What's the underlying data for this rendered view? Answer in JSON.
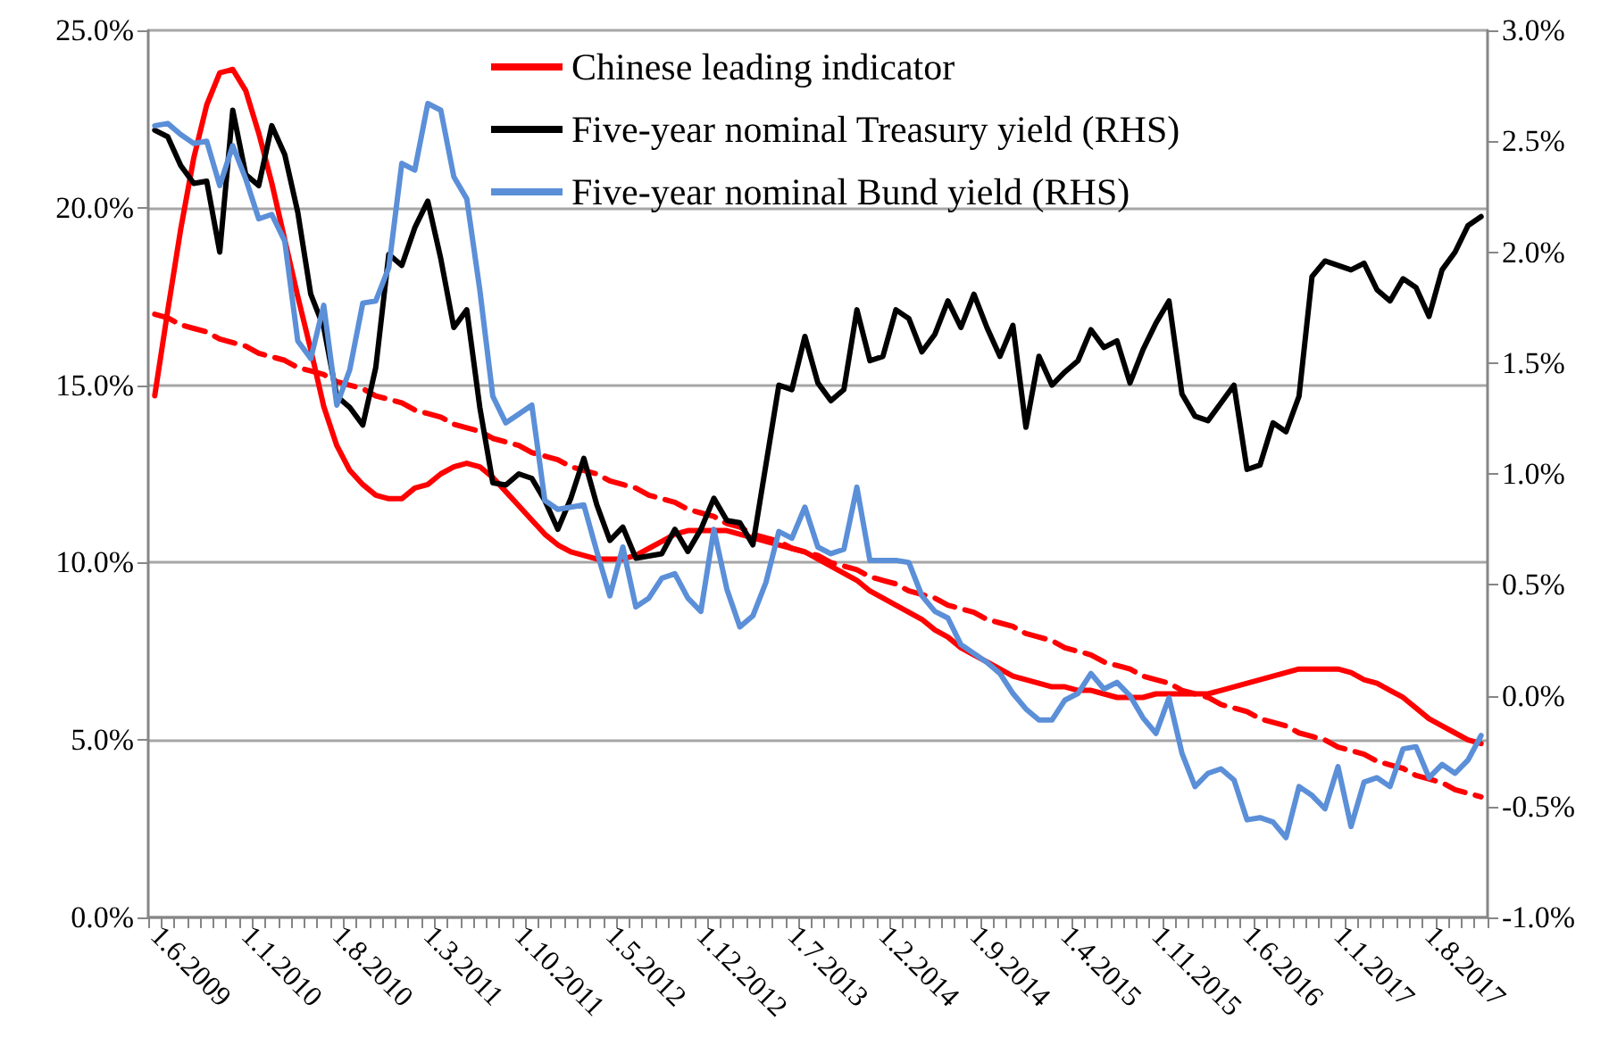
{
  "chart_data": {
    "type": "line",
    "categories": [
      "1.6.2009",
      null,
      null,
      null,
      null,
      null,
      null,
      "1.1.2010",
      null,
      null,
      null,
      null,
      null,
      null,
      "1.8.2010",
      null,
      null,
      null,
      null,
      null,
      null,
      "1.3.2011",
      null,
      null,
      null,
      null,
      null,
      null,
      "1.10.2011",
      null,
      null,
      null,
      null,
      null,
      null,
      "1.5.2012",
      null,
      null,
      null,
      null,
      null,
      null,
      "1.12.2012",
      null,
      null,
      null,
      null,
      null,
      null,
      "1.7.2013",
      null,
      null,
      null,
      null,
      null,
      null,
      "1.2.2014",
      null,
      null,
      null,
      null,
      null,
      null,
      "1.9.2014",
      null,
      null,
      null,
      null,
      null,
      null,
      "1.4.2015",
      null,
      null,
      null,
      null,
      null,
      null,
      "1.11.2015",
      null,
      null,
      null,
      null,
      null,
      null,
      "1.6.2016",
      null,
      null,
      null,
      null,
      null,
      null,
      "1.1.2017",
      null,
      null,
      null,
      null,
      null,
      null,
      "1.8.2017",
      null,
      null,
      null,
      null
    ],
    "series": [
      {
        "name": "Chinese leading indicator",
        "color": "#ff0000",
        "values": [
          14.7,
          17.1,
          19.4,
          21.4,
          22.9,
          23.8,
          23.9,
          23.3,
          22.1,
          20.7,
          19.1,
          17.5,
          16.0,
          14.4,
          13.3,
          12.6,
          12.2,
          11.9,
          11.8,
          11.8,
          12.1,
          12.2,
          12.5,
          12.7,
          12.8,
          12.7,
          12.4,
          12.0,
          11.6,
          11.2,
          10.8,
          10.5,
          10.3,
          10.2,
          10.1,
          10.1,
          10.1,
          10.2,
          10.4,
          10.6,
          10.8,
          10.9,
          10.9,
          10.9,
          10.9,
          10.8,
          10.7,
          10.6,
          10.5,
          10.4,
          10.3,
          10.1,
          9.9,
          9.7,
          9.5,
          9.2,
          9.0,
          8.8,
          8.6,
          8.4,
          8.1,
          7.9,
          7.6,
          7.4,
          7.2,
          7.0,
          6.8,
          6.7,
          6.6,
          6.5,
          6.5,
          6.4,
          6.4,
          6.3,
          6.2,
          6.2,
          6.2,
          6.3,
          6.3,
          6.3,
          6.3,
          6.3,
          6.4,
          6.5,
          6.6,
          6.7,
          6.8,
          6.9,
          7.0,
          7.0,
          7.0,
          7.0,
          6.9,
          6.7,
          6.6,
          6.4,
          6.2,
          5.9,
          5.6,
          5.4,
          5.2,
          5.0,
          4.9
        ]
      },
      {
        "name": "Five-year nominal Treasury yield (RHS)",
        "color": "#000000",
        "axis": "y2",
        "values": [
          2.55,
          2.52,
          2.39,
          2.31,
          2.32,
          2.0,
          2.64,
          2.35,
          2.3,
          2.57,
          2.44,
          2.18,
          1.81,
          1.66,
          1.35,
          1.3,
          1.22,
          1.48,
          1.99,
          1.94,
          2.11,
          2.23,
          1.97,
          1.66,
          1.74,
          1.3,
          0.96,
          0.95,
          1.0,
          0.98,
          0.88,
          0.75,
          0.89,
          1.07,
          0.86,
          0.7,
          0.76,
          0.62,
          0.63,
          0.64,
          0.75,
          0.65,
          0.75,
          0.89,
          0.79,
          0.78,
          0.68,
          1.04,
          1.4,
          1.38,
          1.62,
          1.41,
          1.33,
          1.38,
          1.74,
          1.51,
          1.53,
          1.74,
          1.7,
          1.55,
          1.63,
          1.78,
          1.66,
          1.81,
          1.66,
          1.53,
          1.67,
          1.21,
          1.53,
          1.4,
          1.46,
          1.51,
          1.65,
          1.57,
          1.6,
          1.41,
          1.56,
          1.68,
          1.78,
          1.36,
          1.26,
          1.24,
          1.32,
          1.4,
          1.02,
          1.04,
          1.23,
          1.19,
          1.35,
          1.89,
          1.96,
          1.94,
          1.92,
          1.95,
          1.83,
          1.78,
          1.88,
          1.84,
          1.71,
          1.92,
          2.0,
          2.12,
          2.16
        ]
      },
      {
        "name": "Five-year nominal Bund yield (RHS)",
        "color": "#5b8fd8",
        "axis": "y2",
        "values": [
          2.57,
          2.58,
          2.53,
          2.49,
          2.5,
          2.3,
          2.48,
          2.33,
          2.15,
          2.17,
          2.05,
          1.6,
          1.52,
          1.76,
          1.31,
          1.47,
          1.77,
          1.78,
          1.93,
          2.4,
          2.37,
          2.67,
          2.64,
          2.34,
          2.24,
          1.83,
          1.35,
          1.23,
          1.27,
          1.31,
          0.88,
          0.84,
          0.85,
          0.86,
          0.65,
          0.45,
          0.67,
          0.4,
          0.44,
          0.53,
          0.55,
          0.44,
          0.38,
          0.75,
          0.48,
          0.31,
          0.36,
          0.51,
          0.74,
          0.71,
          0.85,
          0.67,
          0.64,
          0.66,
          0.94,
          0.61,
          0.61,
          0.61,
          0.6,
          0.45,
          0.38,
          0.35,
          0.23,
          0.19,
          0.15,
          0.1,
          0.01,
          -0.06,
          -0.11,
          -0.11,
          -0.02,
          0.01,
          0.1,
          0.03,
          0.06,
          0.0,
          -0.1,
          -0.17,
          -0.01,
          -0.26,
          -0.41,
          -0.35,
          -0.33,
          -0.38,
          -0.56,
          -0.55,
          -0.57,
          -0.64,
          -0.41,
          -0.45,
          -0.51,
          -0.32,
          -0.59,
          -0.39,
          -0.37,
          -0.41,
          -0.24,
          -0.23,
          -0.37,
          -0.31,
          -0.35,
          -0.29,
          -0.18
        ]
      },
      {
        "color": "#ff0000",
        "line_style": "dashed",
        "values": [
          17.0,
          16.9,
          16.7,
          16.6,
          16.5,
          16.3,
          16.2,
          16.1,
          15.9,
          15.8,
          15.7,
          15.5,
          15.4,
          15.3,
          15.1,
          15.0,
          14.9,
          14.7,
          14.6,
          14.5,
          14.3,
          14.2,
          14.1,
          13.9,
          13.8,
          13.7,
          13.5,
          13.4,
          13.3,
          13.1,
          13.0,
          12.9,
          12.7,
          12.6,
          12.5,
          12.3,
          12.2,
          12.1,
          11.9,
          11.8,
          11.7,
          11.5,
          11.4,
          11.3,
          11.1,
          11.0,
          10.8,
          10.7,
          10.6,
          10.4,
          10.3,
          10.2,
          10.0,
          9.9,
          9.8,
          9.6,
          9.5,
          9.4,
          9.2,
          9.1,
          9.0,
          8.8,
          8.7,
          8.6,
          8.4,
          8.3,
          8.2,
          8.0,
          7.9,
          7.8,
          7.6,
          7.5,
          7.4,
          7.2,
          7.1,
          7.0,
          6.8,
          6.7,
          6.6,
          6.4,
          6.3,
          6.2,
          6.0,
          5.9,
          5.8,
          5.6,
          5.5,
          5.4,
          5.2,
          5.1,
          5.0,
          4.8,
          4.7,
          4.6,
          4.4,
          4.3,
          4.2,
          4.0,
          3.9,
          3.8,
          3.6,
          3.5,
          3.4
        ]
      }
    ],
    "ylim": [
      0,
      25
    ],
    "yticks": [
      {
        "value": 0,
        "label": "0.0%"
      },
      {
        "value": 5,
        "label": "5.0%"
      },
      {
        "value": 10,
        "label": "10.0%"
      },
      {
        "value": 15,
        "label": "15.0%"
      },
      {
        "value": 20,
        "label": "20.0%"
      },
      {
        "value": 25,
        "label": "25.0%"
      }
    ],
    "y2lim": [
      -1,
      3
    ],
    "y2ticks": [
      {
        "value": -1,
        "label": "-1.0%"
      },
      {
        "value": -0.5,
        "label": "-0.5%"
      },
      {
        "value": 0,
        "label": "0.0%"
      },
      {
        "value": 0.5,
        "label": "0.5%"
      },
      {
        "value": 1,
        "label": "1.0%"
      },
      {
        "value": 1.5,
        "label": "1.5%"
      },
      {
        "value": 2,
        "label": "2.0%"
      },
      {
        "value": 2.5,
        "label": "2.5%"
      },
      {
        "value": 3,
        "label": "3.0%"
      }
    ],
    "grid": "y",
    "legend": "top"
  }
}
